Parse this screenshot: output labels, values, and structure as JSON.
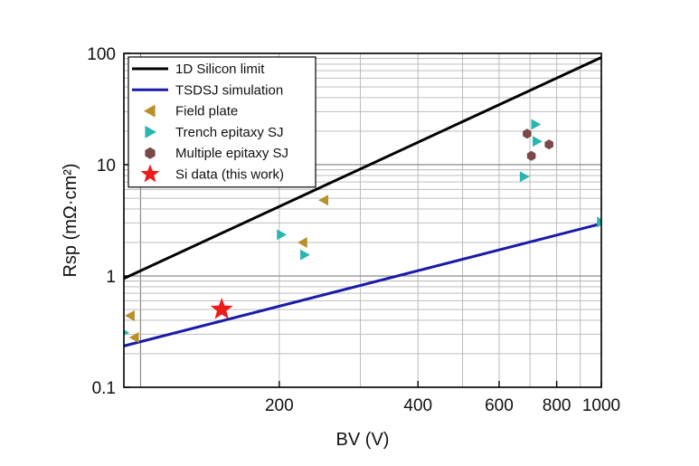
{
  "chart_data": {
    "type": "scatter",
    "title": "",
    "xlabel": "BV (V)",
    "ylabel": "Rsp (mΩ·cm²)",
    "xscale": "log",
    "yscale": "log",
    "xlim": [
      92,
      1000
    ],
    "ylim": [
      0.1,
      100
    ],
    "x_ticks": [
      {
        "value": 200,
        "label": "200"
      },
      {
        "value": 400,
        "label": "400"
      },
      {
        "value": 600,
        "label": "600"
      },
      {
        "value": 800,
        "label": "800"
      },
      {
        "value": 1000,
        "label": "1000"
      }
    ],
    "y_ticks": [
      {
        "value": 0.1,
        "label": "0.1"
      },
      {
        "value": 1,
        "label": "1"
      },
      {
        "value": 10,
        "label": "10"
      },
      {
        "value": 100,
        "label": "100"
      }
    ],
    "grid": true,
    "legend_position": "top-left",
    "series": [
      {
        "name": "1D Silicon limit",
        "kind": "line",
        "color": "#000000",
        "points": [
          [
            92,
            0.95
          ],
          [
            1000,
            92
          ]
        ]
      },
      {
        "name": "TSDSJ simulation",
        "kind": "line",
        "color": "#1a1aa8",
        "points": [
          [
            92,
            0.235
          ],
          [
            1000,
            2.95
          ]
        ]
      },
      {
        "name": "Field plate",
        "kind": "marker",
        "marker": "triangle-left",
        "color": "#b8902a",
        "points": [
          [
            95,
            0.44
          ],
          [
            97,
            0.28
          ],
          [
            225,
            2.0
          ],
          [
            250,
            4.8
          ]
        ]
      },
      {
        "name": "Trench epitaxy SJ",
        "kind": "marker",
        "marker": "triangle-right",
        "color": "#2ab5b0",
        "points": [
          [
            92,
            0.31
          ],
          [
            202,
            2.35
          ],
          [
            227,
            1.55
          ],
          [
            680,
            7.8
          ],
          [
            720,
            23
          ],
          [
            725,
            16.2
          ],
          [
            1000,
            3.05
          ]
        ]
      },
      {
        "name": "Multiple epitaxy SJ",
        "kind": "marker",
        "marker": "hexagon",
        "color": "#7a4a48",
        "points": [
          [
            690,
            19
          ],
          [
            705,
            12
          ],
          [
            770,
            15.2
          ]
        ]
      },
      {
        "name": "Si data (this work)",
        "kind": "marker",
        "marker": "star",
        "color": "#ee1b1b",
        "points": [
          [
            150,
            0.5
          ]
        ]
      }
    ]
  }
}
